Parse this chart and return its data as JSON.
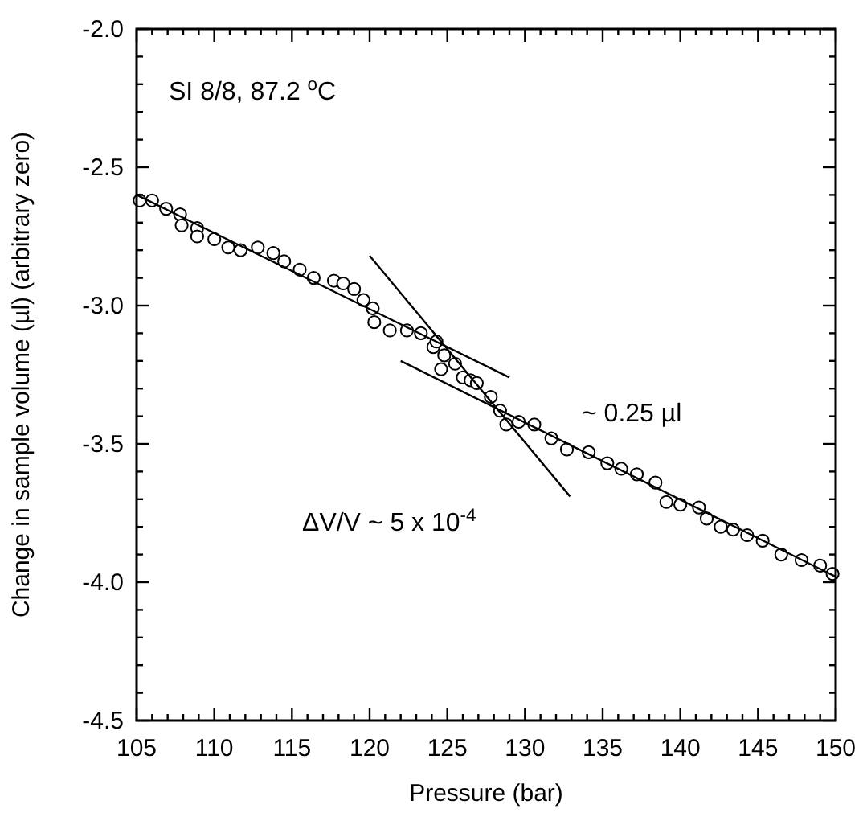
{
  "chart_data": {
    "type": "scatter",
    "xlabel": "Pressure (bar)",
    "ylabel": "Change in sample volume (µl) (arbitrary zero)",
    "annotations": [
      "SI 8/8, 87.2 $^{o}$C",
      "~ 0.25 µl",
      "ΔV/V ~ 5 x 10$^{-4}$"
    ],
    "xlim": [
      105,
      150
    ],
    "ylim": [
      -4.5,
      -2.0
    ],
    "xticks": [
      105,
      {
        "value": 106,
        "label": null
      },
      {
        "value": 107,
        "label": null
      },
      {
        "value": 108,
        "label": null
      },
      {
        "value": 109,
        "label": null
      },
      110,
      {
        "value": 111,
        "label": null
      },
      {
        "value": 112,
        "label": null
      },
      {
        "value": 113,
        "label": null
      },
      {
        "value": 114,
        "label": null
      },
      115,
      {
        "value": 116,
        "label": null
      },
      {
        "value": 117,
        "label": null
      },
      {
        "value": 118,
        "label": null
      },
      {
        "value": 119,
        "label": null
      },
      120,
      {
        "value": 121,
        "label": null
      },
      {
        "value": 122,
        "label": null
      },
      {
        "value": 123,
        "label": null
      },
      {
        "value": 124,
        "label": null
      },
      125,
      {
        "value": 126,
        "label": null
      },
      {
        "value": 127,
        "label": null
      },
      {
        "value": 128,
        "label": null
      },
      {
        "value": 129,
        "label": null
      },
      130,
      {
        "value": 131,
        "label": null
      },
      {
        "value": 132,
        "label": null
      },
      {
        "value": 133,
        "label": null
      },
      {
        "value": 134,
        "label": null
      },
      135,
      {
        "value": 136,
        "label": null
      },
      {
        "value": 137,
        "label": null
      },
      {
        "value": 138,
        "label": null
      },
      {
        "value": 139,
        "label": null
      },
      140,
      {
        "value": 141,
        "label": null
      },
      {
        "value": 142,
        "label": null
      },
      {
        "value": 143,
        "label": null
      },
      {
        "value": 144,
        "label": null
      },
      145,
      {
        "value": 146,
        "label": null
      },
      {
        "value": 147,
        "label": null
      },
      {
        "value": 148,
        "label": null
      },
      {
        "value": 149,
        "label": null
      },
      150
    ],
    "yticks": [
      {
        "value": -2.0,
        "label": "-2.0"
      },
      {
        "value": -2.1,
        "label": null
      },
      {
        "value": -2.2,
        "label": null
      },
      {
        "value": -2.3,
        "label": null
      },
      {
        "value": -2.4,
        "label": null
      },
      {
        "value": -2.5,
        "label": "-2.5"
      },
      {
        "value": -2.6,
        "label": null
      },
      {
        "value": -2.7,
        "label": null
      },
      {
        "value": -2.8,
        "label": null
      },
      {
        "value": -2.9,
        "label": null
      },
      {
        "value": -3.0,
        "label": "-3.0"
      },
      {
        "value": -3.1,
        "label": null
      },
      {
        "value": -3.2,
        "label": null
      },
      {
        "value": -3.3,
        "label": null
      },
      {
        "value": -3.4,
        "label": null
      },
      {
        "value": -3.5,
        "label": "-3.5"
      },
      {
        "value": -3.6,
        "label": null
      },
      {
        "value": -3.7,
        "label": null
      },
      {
        "value": -3.8,
        "label": null
      },
      {
        "value": -3.9,
        "label": null
      },
      {
        "value": -4.0,
        "label": "-4.0"
      },
      {
        "value": -4.1,
        "label": null
      },
      {
        "value": -4.2,
        "label": null
      },
      {
        "value": -4.3,
        "label": null
      },
      {
        "value": -4.4,
        "label": null
      },
      {
        "value": -4.5,
        "label": "-4.5"
      }
    ],
    "marker": "circle",
    "grid": false,
    "series": [
      {
        "color": "#000000",
        "x": [
          105.2,
          106.0,
          106.9,
          107.8,
          107.9,
          108.9,
          108.9,
          110.0,
          110.9,
          111.7,
          112.8,
          113.8,
          114.5,
          115.5,
          116.4,
          117.7,
          118.3,
          119.0,
          119.6,
          120.2,
          120.3,
          121.3,
          122.4,
          123.3,
          124.1,
          124.3,
          124.6,
          124.8,
          125.5,
          126.0,
          126.5,
          126.9,
          127.8,
          128.4,
          128.8,
          129.6,
          130.6,
          131.7,
          132.7,
          134.1,
          135.3,
          136.2,
          137.2,
          138.4,
          139.1,
          140.0,
          141.2,
          141.7,
          142.6,
          143.4,
          144.3,
          145.3,
          146.5,
          147.8,
          149.0,
          149.8
        ],
        "values": [
          -2.62,
          -2.62,
          -2.65,
          -2.67,
          -2.71,
          -2.72,
          -2.75,
          -2.76,
          -2.79,
          -2.8,
          -2.79,
          -2.81,
          -2.84,
          -2.87,
          -2.9,
          -2.91,
          -2.92,
          -2.94,
          -2.98,
          -3.01,
          -3.06,
          -3.09,
          -3.09,
          -3.1,
          -3.15,
          -3.13,
          -3.23,
          -3.18,
          -3.21,
          -3.26,
          -3.27,
          -3.28,
          -3.33,
          -3.38,
          -3.43,
          -3.42,
          -3.43,
          -3.48,
          -3.52,
          -3.53,
          -3.57,
          -3.59,
          -3.61,
          -3.64,
          -3.71,
          -3.72,
          -3.73,
          -3.77,
          -3.8,
          -3.81,
          -3.83,
          -3.85,
          -3.9,
          -3.92,
          -3.94,
          -3.97
        ]
      },
      {
        "type": "line",
        "color": "#000000",
        "marker": "none",
        "x": [
          105,
          129.0
        ],
        "values": [
          -2.6,
          -3.26
        ]
      },
      {
        "type": "line",
        "color": "#000000",
        "marker": "none",
        "x": [
          120.0,
          132.9
        ],
        "values": [
          -2.82,
          -3.69
        ]
      },
      {
        "type": "line",
        "color": "#000000",
        "marker": "none",
        "x": [
          122.0,
          150
        ],
        "values": [
          -3.2,
          -3.98
        ]
      }
    ]
  }
}
